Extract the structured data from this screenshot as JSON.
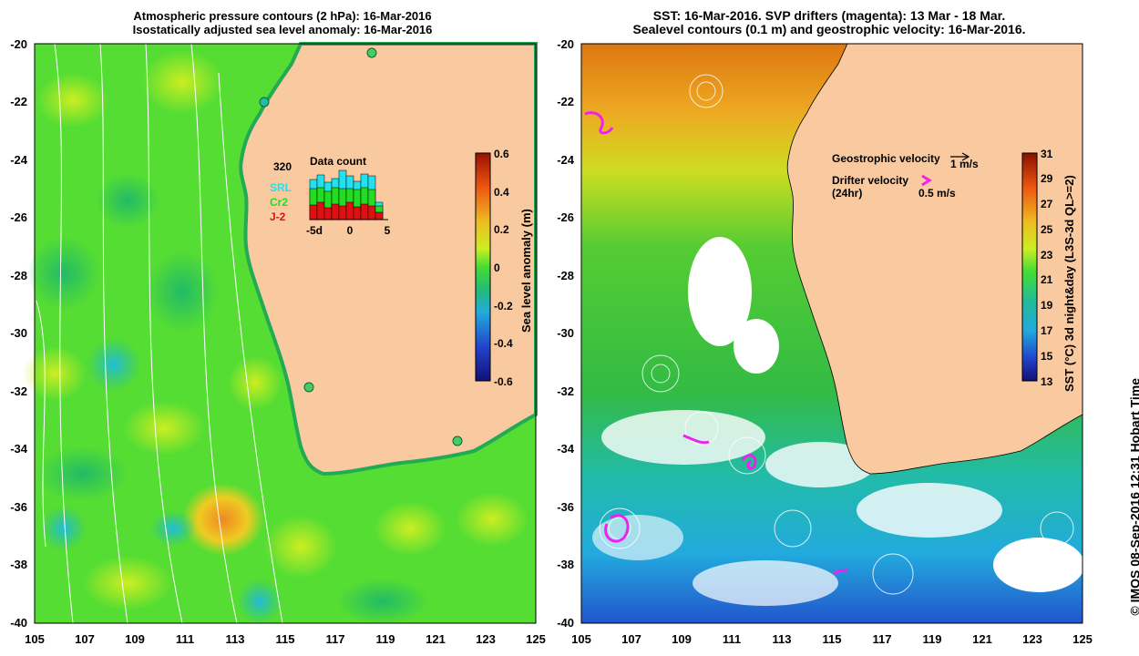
{
  "left_panel": {
    "title_line1": "Atmospheric pressure contours (2 hPa): 16-Mar-2016",
    "title_line2": "Isostatically adjusted sea level anomaly: 16-Mar-2016",
    "y_ticks": [
      "-20",
      "-22",
      "-24",
      "-26",
      "-28",
      "-30",
      "-32",
      "-34",
      "-36",
      "-38",
      "-40"
    ],
    "x_ticks": [
      "105",
      "107",
      "109",
      "111",
      "113",
      "115",
      "117",
      "119",
      "121",
      "123",
      "125"
    ],
    "inset": {
      "title": "Data count",
      "count": "320",
      "legend": [
        {
          "label": "SRL",
          "color": "#22e0ee"
        },
        {
          "label": "Cr2",
          "color": "#22dd22"
        },
        {
          "label": "J-2",
          "color": "#dd1111"
        }
      ],
      "x_ticks": [
        "-5d",
        "0",
        "5"
      ]
    },
    "colorbar": {
      "label": "Sea level anomaly (m)",
      "ticks": [
        "0.6",
        "0.4",
        "0.2",
        "0",
        "-0.2",
        "-0.4",
        "-0.6"
      ]
    }
  },
  "right_panel": {
    "title_line1": "SST: 16-Mar-2016. SVP drifters (magenta): 13 Mar - 18 Mar.",
    "title_line2": "Sealevel contours (0.1 m) and geostrophic velocity: 16-Mar-2016.",
    "y_ticks": [
      "-20",
      "-22",
      "-24",
      "-26",
      "-28",
      "-30",
      "-32",
      "-34",
      "-36",
      "-38",
      "-40"
    ],
    "x_ticks": [
      "105",
      "107",
      "109",
      "111",
      "113",
      "115",
      "117",
      "119",
      "121",
      "123",
      "125"
    ],
    "legend": {
      "geo_label": "Geostrophic velocity",
      "geo_scale": "1 m/s",
      "drifter_label": "Drifter velocity",
      "drifter_sub": "(24hr)",
      "drifter_scale": "0.5 m/s"
    },
    "colorbar": {
      "label": "SST (°C) 3d night&day (L3S-3d QL>=2)",
      "ticks": [
        "31",
        "29",
        "27",
        "25",
        "23",
        "21",
        "19",
        "17",
        "15",
        "13"
      ]
    }
  },
  "credit": "© IMOS 08-Sep-2016 12:31 Hobart Time"
}
